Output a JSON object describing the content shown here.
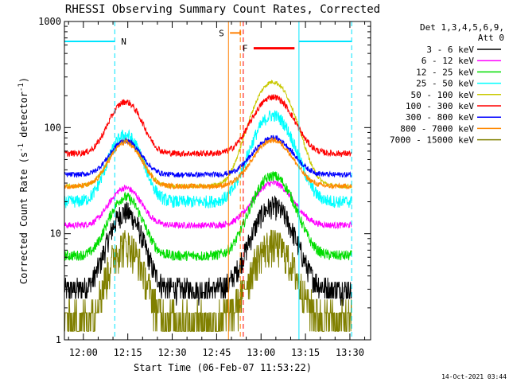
{
  "chart_data": {
    "type": "line",
    "title": "RHESSI Observing Summary Count Rates, Corrected",
    "xlabel": "Start Time (06-Feb-07 11:53:22)",
    "ylabel_parts": [
      "Corrected Count Rate (s",
      "-1",
      " detector",
      "-1",
      ")"
    ],
    "y_scale": "log",
    "ylim": [
      1,
      1000
    ],
    "xlim_min": [
      -6.4,
      97.0
    ],
    "x_tick_labels": [
      "12:00",
      "12:15",
      "12:30",
      "12:45",
      "13:00",
      "13:15",
      "13:30"
    ],
    "x_tick_min": [
      0,
      15,
      30,
      45,
      60,
      75,
      90
    ],
    "y_tick_labels": [
      "1",
      "10",
      "100",
      "1000"
    ],
    "y_tick_values": [
      1,
      10,
      100,
      1000
    ],
    "legend": {
      "placement": "right",
      "header": [
        "Det 1,3,4,5,6,9,",
        "Att 0"
      ],
      "entries": [
        {
          "name": "3 - 6 keV",
          "color": "#000000"
        },
        {
          "name": "6 - 12 keV",
          "color": "#ff00ff"
        },
        {
          "name": "12 - 25 keV",
          "color": "#00dd00"
        },
        {
          "name": "25 - 50 keV",
          "color": "#00ffff"
        },
        {
          "name": "50 - 100 keV",
          "color": "#c8c800"
        },
        {
          "name": "100 - 300 keV",
          "color": "#ff0000"
        },
        {
          "name": "300 - 800 keV",
          "color": "#0000ff"
        },
        {
          "name": "800 - 7000 keV",
          "color": "#ff8800"
        },
        {
          "name": "7000 - 15000 keV",
          "color": "#808000"
        }
      ]
    },
    "series": [
      {
        "name": "3 - 6 keV",
        "color": "#000000",
        "baseline": 3.0,
        "peak1": 16,
        "peak2": 18,
        "noise": 0.25
      },
      {
        "name": "6 - 12 keV",
        "color": "#ff00ff",
        "baseline": 12,
        "peak1": 27,
        "peak2": 30,
        "noise": 0.06
      },
      {
        "name": "12 - 25 keV",
        "color": "#00dd00",
        "baseline": 6.2,
        "peak1": 22,
        "peak2": 35,
        "noise": 0.1
      },
      {
        "name": "25 - 50 keV",
        "color": "#00ffff",
        "baseline": 20,
        "peak1": 85,
        "peak2": 130,
        "noise": 0.12
      },
      {
        "name": "50 - 100 keV",
        "color": "#c8c800",
        "baseline": 28,
        "peak1": 75,
        "peak2": 270,
        "noise": 0.04
      },
      {
        "name": "100 - 300 keV",
        "color": "#ff0000",
        "baseline": 57,
        "peak1": 175,
        "peak2": 195,
        "noise": 0.06
      },
      {
        "name": "300 - 800 keV",
        "color": "#0000ff",
        "baseline": 36,
        "peak1": 75,
        "peak2": 80,
        "noise": 0.05
      },
      {
        "name": "800 - 7000 keV",
        "color": "#ff8800",
        "baseline": 28,
        "peak1": 72,
        "peak2": 76,
        "noise": 0.05
      },
      {
        "name": "7000 - 15000 keV",
        "color": "#808000",
        "baseline": 1.6,
        "peak1": 8,
        "peak2": 8,
        "noise": 0.4
      }
    ],
    "annotations": [
      {
        "label": "N",
        "color": "#00e5ff",
        "x_min": [
          -6.4,
          10.6
        ],
        "y": 650,
        "marker_x_min": 10.6
      },
      {
        "label": "N",
        "color": "#00e5ff",
        "x_min": [
          72.8,
          90.6
        ],
        "y": 650,
        "marker_x_min": 90.6
      },
      {
        "label": "S",
        "color": "#ff7f00",
        "x_min": [
          49.5,
          53.0
        ],
        "y": 780,
        "marker_x_min": 53.0
      },
      {
        "label": "F",
        "color": "#ff0000",
        "x_min": [
          57.5,
          71.3
        ],
        "y": 560,
        "marker_x_min": 54.0
      }
    ],
    "solid_vlines_min": [
      -6.4,
      49.0,
      72.8
    ]
  },
  "footer": {
    "timestamp": "14-Oct-2021 03:44"
  }
}
